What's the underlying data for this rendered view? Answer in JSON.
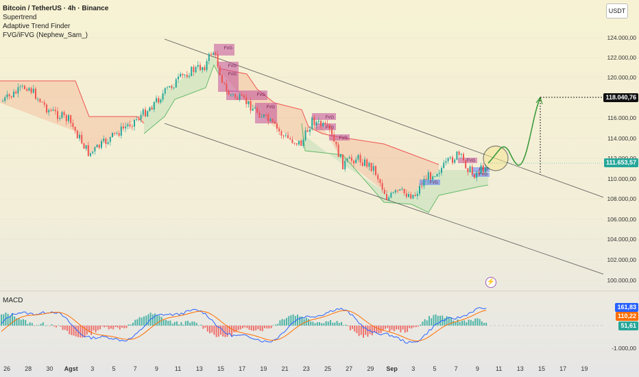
{
  "legend": {
    "symbol": "Bitcoin / TetherUS · 4h · Binance",
    "indicators": [
      "Supertrend",
      "Adaptive Trend Finder",
      "FVG/iFVG (Nephew_Sam_)"
    ]
  },
  "quote_currency": "USDT",
  "price_axis": {
    "ticks": [
      "124.000,00",
      "122.000,00",
      "120.000,00",
      "116.000,00",
      "114.000,00",
      "112.000,00",
      "110.000,00",
      "108.000,00",
      "106.000,00",
      "104.000,00",
      "102.000,00",
      "100.000,00"
    ],
    "target_label": "118.040,76",
    "current_label": "111.653,57"
  },
  "time_axis": [
    "26",
    "28",
    "30",
    "Agst",
    "3",
    "5",
    "7",
    "9",
    "11",
    "13",
    "15",
    "17",
    "19",
    "21",
    "23",
    "25",
    "27",
    "29",
    "Sep",
    "3",
    "5",
    "7",
    "9",
    "11",
    "13",
    "15",
    "17",
    "19"
  ],
  "fvg_label": "FVG",
  "macd": {
    "title": "MACD",
    "labels": [
      "161,83",
      "110,22",
      "51,61",
      "-1.000,00"
    ]
  },
  "colors": {
    "bull": "#26a69a",
    "bear": "#ef5350",
    "supertrend_up": "#66bb6a",
    "supertrend_down": "#ef5350",
    "fvg_bear": "#c2519a",
    "fvg_bull": "#5c7cfa",
    "channel": "#555555",
    "projection": "#3a9a3a",
    "macd_line": "#2962ff",
    "signal_line": "#ff6d00",
    "current_tag": "#26a69a",
    "target_tag": "#111111"
  }
}
